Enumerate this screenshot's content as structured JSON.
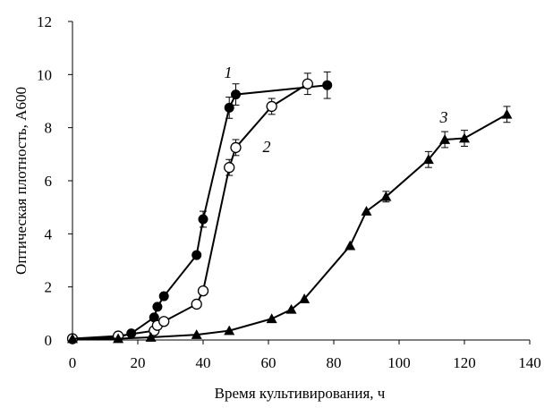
{
  "chart_data": {
    "type": "line",
    "title": "",
    "xlabel": "Время культивирования, ч",
    "ylabel": "Оптическая плотность, А600",
    "xlim": [
      0,
      140
    ],
    "ylim": [
      0,
      12
    ],
    "x_ticks": [
      0,
      20,
      40,
      60,
      80,
      100,
      120,
      140
    ],
    "y_ticks": [
      0,
      2,
      4,
      6,
      8,
      10,
      12
    ],
    "grid": false,
    "legend": "none",
    "series": [
      {
        "label": "1",
        "marker": "filled-circle",
        "color": "#000000",
        "points": [
          [
            0,
            0.05
          ],
          [
            14,
            0.1
          ],
          [
            18,
            0.25
          ],
          [
            25,
            0.85
          ],
          [
            26,
            1.25
          ],
          [
            28,
            1.65
          ],
          [
            38,
            3.2
          ],
          [
            40,
            4.55
          ],
          [
            48,
            8.75
          ],
          [
            50,
            9.25
          ],
          [
            78,
            9.6
          ]
        ],
        "errors": [
          0,
          0,
          0,
          0,
          0,
          0,
          0,
          0.3,
          0.4,
          0.4,
          0.5
        ]
      },
      {
        "label": "2",
        "marker": "open-circle",
        "color": "#000000",
        "points": [
          [
            0,
            0.05
          ],
          [
            14,
            0.15
          ],
          [
            25,
            0.35
          ],
          [
            26,
            0.55
          ],
          [
            28,
            0.7
          ],
          [
            38,
            1.35
          ],
          [
            40,
            1.85
          ],
          [
            48,
            6.5
          ],
          [
            50,
            7.25
          ],
          [
            61,
            8.8
          ],
          [
            72,
            9.65
          ]
        ],
        "errors": [
          0,
          0,
          0,
          0,
          0,
          0,
          0,
          0.3,
          0.3,
          0.3,
          0.4
        ]
      },
      {
        "label": "3",
        "marker": "filled-triangle",
        "color": "#000000",
        "points": [
          [
            0,
            0.05
          ],
          [
            14,
            0.05
          ],
          [
            24,
            0.1
          ],
          [
            38,
            0.2
          ],
          [
            48,
            0.35
          ],
          [
            61,
            0.8
          ],
          [
            67,
            1.15
          ],
          [
            71,
            1.55
          ],
          [
            85,
            3.55
          ],
          [
            90,
            4.85
          ],
          [
            96,
            5.4
          ],
          [
            109,
            6.8
          ],
          [
            114,
            7.55
          ],
          [
            120,
            7.6
          ],
          [
            133,
            8.5
          ]
        ],
        "errors": [
          0,
          0,
          0,
          0,
          0,
          0,
          0,
          0,
          0,
          0,
          0.2,
          0.3,
          0.3,
          0.3,
          0.3
        ]
      }
    ]
  }
}
